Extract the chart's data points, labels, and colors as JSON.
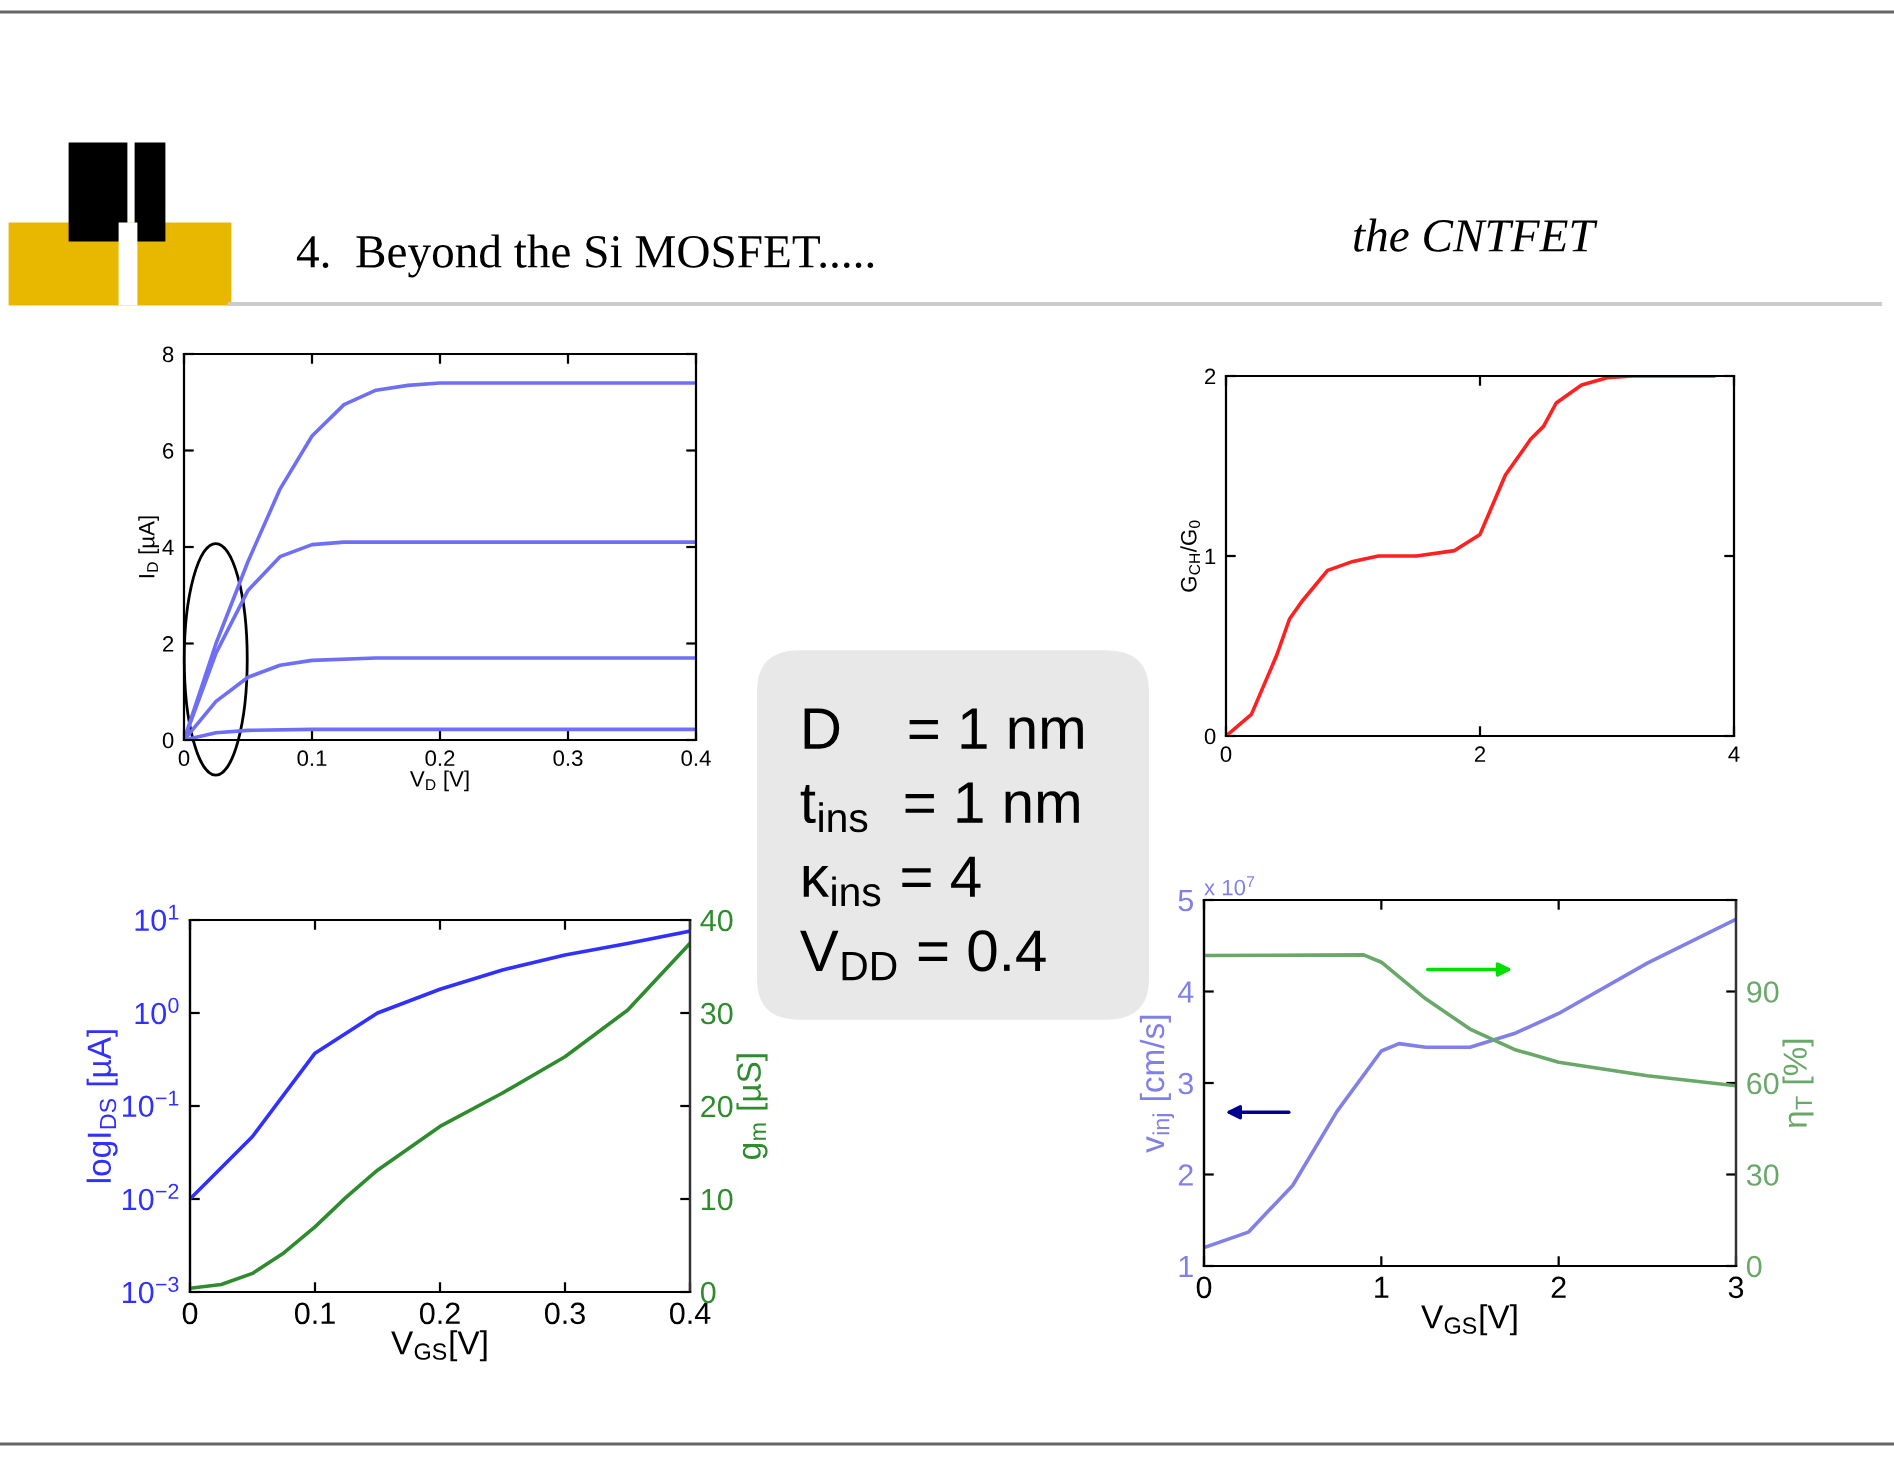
{
  "chart_data": [
    {
      "type": "other",
      "title": "4.  Beyond the Si MOSFET.....",
      "subtitle": "the CNTFET",
      "annotations": [
        "D    = 1 nm",
        "t$_{ins}$  = 1 nm",
        "κ$_{ins}$ = 4",
        "V$_{DD}$ = 0.4"
      ]
    },
    {
      "type": "line",
      "xlabel": "V$_{D}$ [V]",
      "ylabel": "I$_{D}$ [µA]",
      "xlim": [
        0,
        0.4
      ],
      "xticks": [
        0,
        0.1,
        0.2,
        0.3,
        0.4
      ],
      "ylim": [
        0,
        8
      ],
      "yticks": [
        0,
        2,
        4,
        6,
        8
      ],
      "series": [
        {
          "color": "#6f6ff5",
          "x": [
            0,
            0.025,
            0.05,
            0.075,
            0.1,
            0.125,
            0.15,
            0.175,
            0.2,
            0.3,
            0.4
          ],
          "values": [
            0,
            2.0,
            3.7,
            5.2,
            6.3,
            6.95,
            7.25,
            7.35,
            7.4,
            7.4,
            7.4
          ]
        },
        {
          "color": "#6f6ff5",
          "x": [
            0,
            0.025,
            0.05,
            0.075,
            0.1,
            0.125,
            0.2,
            0.4
          ],
          "values": [
            0,
            1.8,
            3.1,
            3.8,
            4.05,
            4.1,
            4.1,
            4.1
          ]
        },
        {
          "color": "#6f6ff5",
          "x": [
            0,
            0.025,
            0.05,
            0.075,
            0.1,
            0.15,
            0.4
          ],
          "values": [
            0,
            0.8,
            1.3,
            1.55,
            1.65,
            1.7,
            1.7
          ]
        },
        {
          "color": "#6f6ff5",
          "x": [
            0,
            0.025,
            0.05,
            0.1,
            0.4
          ],
          "values": [
            0,
            0.15,
            0.2,
            0.22,
            0.22
          ]
        }
      ]
    },
    {
      "type": "line",
      "ylabel": "G$_{CH}$/G$_{0}$",
      "xlim": [
        0,
        4
      ],
      "xticks": [
        0,
        2,
        4
      ],
      "ylim": [
        0,
        2
      ],
      "yticks": [
        0,
        1,
        2
      ],
      "series": [
        {
          "color": "#ff2020",
          "x": [
            0,
            0.2,
            0.4,
            0.5,
            0.6,
            0.8,
            1.0,
            1.2,
            1.5,
            1.8,
            2.0,
            2.2,
            2.4,
            2.5,
            2.6,
            2.8,
            3.0,
            3.2,
            3.84
          ],
          "values": [
            0,
            0.12,
            0.45,
            0.65,
            0.75,
            0.92,
            0.97,
            1.0,
            1.0,
            1.03,
            1.12,
            1.45,
            1.65,
            1.72,
            1.85,
            1.95,
            1.99,
            2.0,
            2.0
          ]
        }
      ]
    },
    {
      "type": "line",
      "xlabel": "V$_{GS}$[V]",
      "ylabel": "logI$_{DS}$ [µA]",
      "y2label": "g$_{m}$ [µS]",
      "log": "y",
      "xlim": [
        0,
        0.4
      ],
      "xticks": [
        0,
        0.1,
        0.2,
        0.3,
        0.4
      ],
      "ylim": [
        0.001,
        10
      ],
      "yticks": [
        {
          "value": 0.001,
          "label": "10$^{−3}$"
        },
        {
          "value": 0.01,
          "label": "10$^{−2}$"
        },
        {
          "value": 0.1,
          "label": "10$^{−1}$"
        },
        {
          "value": 1,
          "label": "10$^{0}$"
        },
        {
          "value": 10,
          "label": "10$^{1}$"
        }
      ],
      "y2lim": [
        0,
        40
      ],
      "y2ticks": [
        0,
        10,
        20,
        30,
        40
      ],
      "series": [
        {
          "color": "#3030ff",
          "x": [
            0,
            0.05,
            0.1,
            0.15,
            0.2,
            0.25,
            0.3,
            0.35,
            0.4
          ],
          "values": [
            0.01,
            0.047,
            0.37,
            1.0,
            1.8,
            2.9,
            4.2,
            5.6,
            7.6
          ]
        },
        {
          "color": "#2e8b2e",
          "axis": "y2",
          "x": [
            0,
            0.025,
            0.05,
            0.075,
            0.1,
            0.125,
            0.15,
            0.2,
            0.25,
            0.3,
            0.35,
            0.4
          ],
          "values": [
            0.4,
            0.8,
            2.0,
            4.2,
            7,
            10.2,
            13.1,
            17.8,
            21.4,
            25.3,
            30.3,
            37.5
          ]
        }
      ]
    },
    {
      "type": "line",
      "xlabel": "V$_{GS}$[V]",
      "ylabel": "v$_{inj}$ [cm/s]",
      "y2label": "η$_{T}$ [%]",
      "annotations": [
        "x 10$^{7}$"
      ],
      "xlim": [
        0,
        3
      ],
      "xticks": [
        0,
        1,
        2,
        3
      ],
      "ylim": [
        1,
        5
      ],
      "yticks": [
        1,
        2,
        3,
        4,
        5
      ],
      "y2lim": [
        0,
        120
      ],
      "y2ticks": [
        0,
        30,
        60,
        90,
        {
          "value": 120,
          "label": null
        }
      ],
      "series": [
        {
          "color": "#8080e8",
          "x": [
            0,
            0.25,
            0.5,
            0.75,
            1.0,
            1.1,
            1.25,
            1.5,
            1.75,
            2.0,
            2.5,
            3.0
          ],
          "values": [
            1.2,
            1.37,
            1.88,
            2.69,
            3.35,
            3.43,
            3.39,
            3.39,
            3.54,
            3.76,
            4.31,
            4.79
          ]
        },
        {
          "color": "#6aa86a",
          "axis": "y2",
          "x": [
            0,
            0.9,
            1.0,
            1.25,
            1.5,
            1.75,
            2.0,
            2.5,
            3.0
          ],
          "values": [
            101.8,
            102,
            99.6,
            87.6,
            77.7,
            71,
            66.8,
            62.4,
            59.1
          ]
        }
      ]
    }
  ]
}
